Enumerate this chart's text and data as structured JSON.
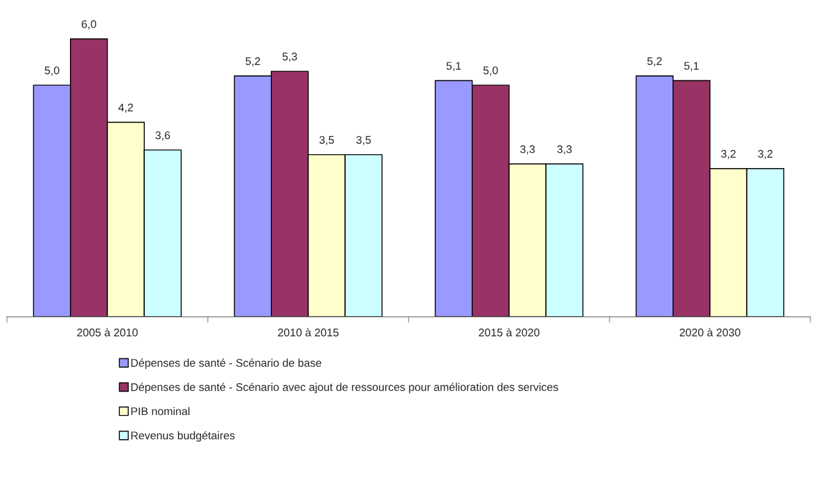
{
  "chart_data": {
    "type": "bar",
    "categories": [
      "2005 à 2010",
      "2010 à 2015",
      "2015 à 2020",
      "2020 à 2030"
    ],
    "series": [
      {
        "name": "Dépenses de santé - Scénario de base",
        "color": "#9999ff",
        "values": [
          5.0,
          5.2,
          5.1,
          5.2
        ],
        "value_labels": [
          "5,0",
          "5,2",
          "5,1",
          "5,2"
        ]
      },
      {
        "name": "Dépenses de santé - Scénario avec ajout de ressources pour amélioration des services",
        "color": "#993366",
        "values": [
          6.0,
          5.3,
          5.0,
          5.1
        ],
        "value_labels": [
          "6,0",
          "5,3",
          "5,0",
          "5,1"
        ]
      },
      {
        "name": "PIB nominal",
        "color": "#ffffcc",
        "values": [
          4.2,
          3.5,
          3.3,
          3.2
        ],
        "value_labels": [
          "4,2",
          "3,5",
          "3,3",
          "3,2"
        ]
      },
      {
        "name": "Revenus budgétaires",
        "color": "#ccffff",
        "values": [
          3.6,
          3.5,
          3.3,
          3.2
        ],
        "value_labels": [
          "3,6",
          "3,5",
          "3,3",
          "3,2"
        ]
      }
    ],
    "legend": "bottom",
    "grid": false
  }
}
